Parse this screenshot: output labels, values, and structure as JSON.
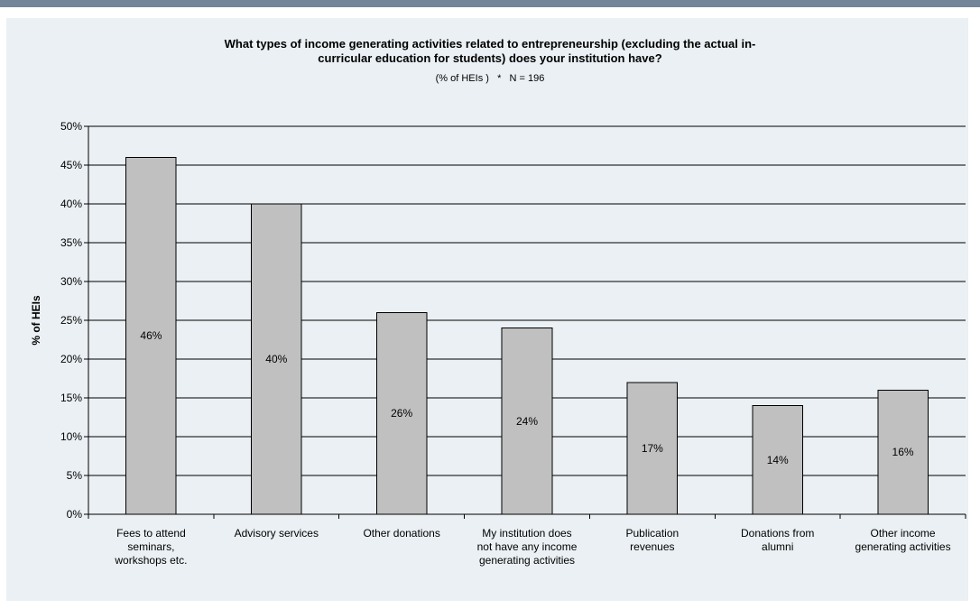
{
  "chart_data": {
    "type": "bar",
    "title_lines": [
      "What types of income generating activities related to entrepreneurship (excluding the actual in-",
      "curricular education for students) does your institution have?"
    ],
    "subtitle": "(% of HEIs )   *   N = 196",
    "ylabel": "% of HEIs",
    "xlabel": "",
    "ylim": [
      0,
      0.5
    ],
    "ytick_labels": [
      "0%",
      "5%",
      "10%",
      "15%",
      "20%",
      "25%",
      "30%",
      "35%",
      "40%",
      "45%",
      "50%"
    ],
    "grid": "horizontal",
    "legend": "none",
    "categories": [
      [
        "Fees to attend",
        "seminars,",
        "workshops etc."
      ],
      [
        "Advisory services"
      ],
      [
        "Other donations"
      ],
      [
        "My institution does",
        "not have any income",
        "generating activities"
      ],
      [
        "Publication",
        "revenues"
      ],
      [
        "Donations from",
        "alumni"
      ],
      [
        "Other income",
        "generating activities"
      ]
    ],
    "values": [
      0.46,
      0.4,
      0.26,
      0.24,
      0.17,
      0.14,
      0.16
    ],
    "data_labels": [
      "46%",
      "40%",
      "26%",
      "24%",
      "17%",
      "14%",
      "16%"
    ],
    "colors": {
      "bar": "#c0c0c0",
      "bar_border": "#000000",
      "grid": "#000000",
      "panel": "#eaf0f3",
      "top_bar": "#738599"
    }
  }
}
